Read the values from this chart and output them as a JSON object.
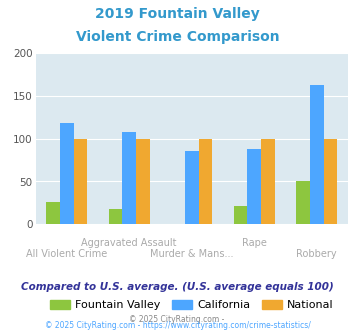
{
  "title_line1": "2019 Fountain Valley",
  "title_line2": "Violent Crime Comparison",
  "categories": [
    "All Violent Crime",
    "Aggravated Assault",
    "Murder & Mans...",
    "Rape",
    "Robbery"
  ],
  "series": {
    "Fountain Valley": [
      26,
      18,
      0,
      22,
      51
    ],
    "California": [
      118,
      108,
      86,
      88,
      162
    ],
    "National": [
      100,
      100,
      100,
      100,
      100
    ]
  },
  "colors": {
    "Fountain Valley": "#8dc63f",
    "California": "#4da6ff",
    "National": "#f0a830"
  },
  "ylim": [
    0,
    200
  ],
  "yticks": [
    0,
    50,
    100,
    150,
    200
  ],
  "background_color": "#dce9f0",
  "title_color": "#3399cc",
  "subtitle_text": "Compared to U.S. average. (U.S. average equals 100)",
  "subtitle_color": "#333399",
  "footer_text": "© 2025 CityRating.com - https://www.cityrating.com/crime-statistics/",
  "footer_color": "#888888",
  "footer_link_color": "#4da6ff",
  "xlabel_color": "#aaaaaa",
  "tick_label_fontsize": 7.5,
  "cat_label_fontsize": 7.0,
  "bar_width": 0.22,
  "row1_cats": {
    "1": "Aggravated Assault",
    "3": "Rape"
  },
  "row2_cats": {
    "0": "All Violent Crime",
    "2": "Murder & Mans...",
    "4": "Robbery"
  }
}
